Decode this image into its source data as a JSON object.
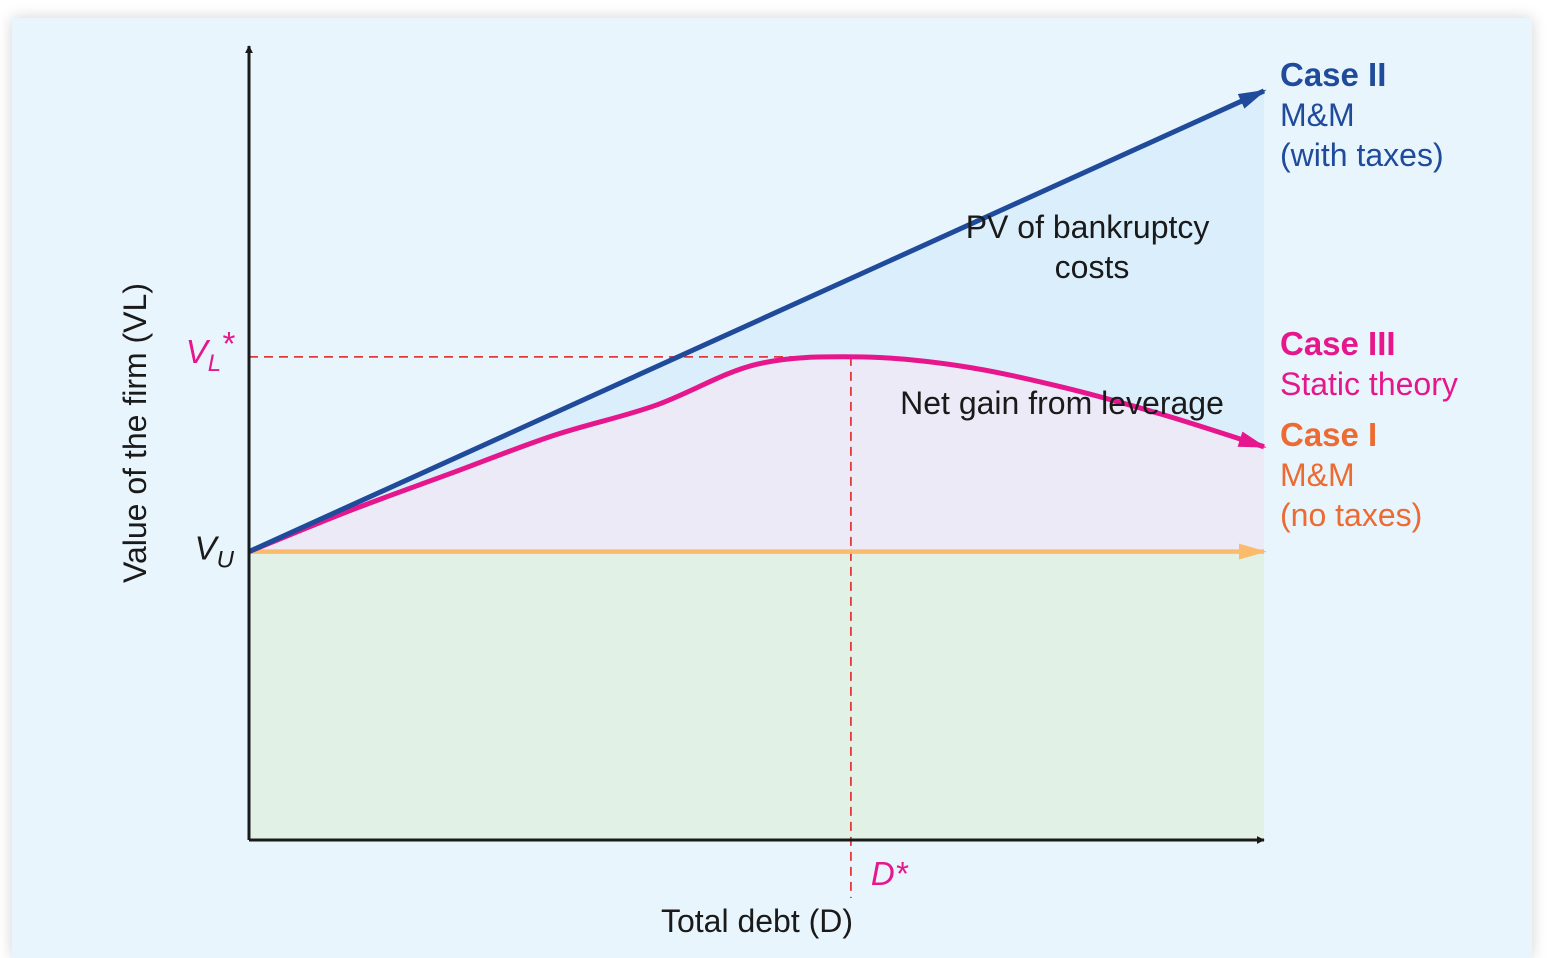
{
  "chart_data": {
    "type": "line",
    "xlabel": "Total debt (D)",
    "ylabel": "Value of the firm (VL)",
    "ticks": {
      "x": {
        "label": "D",
        "suffix": "*"
      },
      "y": [
        {
          "label": "V",
          "sub": "L",
          "suffix": "*"
        },
        {
          "label": "V",
          "sub": "U",
          "suffix": ""
        }
      ]
    },
    "regions": [
      {
        "name": "PV of bankruptcy costs",
        "lines": [
          "PV of bankruptcy",
          "costs"
        ],
        "color": "#dbeefc"
      },
      {
        "name": "Net gain from leverage",
        "lines": [
          "Net gain from leverage"
        ],
        "color": "#eceaf6"
      },
      {
        "name": "base",
        "lines": [],
        "color": "#e2f1e6"
      }
    ],
    "series": [
      {
        "name": "Case II",
        "lines": [
          "Case II",
          "M&M",
          "(with taxes)"
        ],
        "color": "#1f4b9a",
        "label_color": "#1f4b9a",
        "x": [
          0,
          1.0
        ],
        "y": [
          0.385,
          1.0
        ]
      },
      {
        "name": "Case III",
        "lines": [
          "Case III",
          "Static theory"
        ],
        "color": "#e6168c",
        "label_color": "#e6168c",
        "x": [
          0,
          0.1,
          0.2,
          0.3,
          0.4,
          0.5,
          0.6,
          0.7,
          0.8,
          0.9,
          1.0
        ],
        "y": [
          0.385,
          0.44,
          0.49,
          0.54,
          0.58,
          0.635,
          0.645,
          0.633,
          0.605,
          0.568,
          0.525
        ]
      },
      {
        "name": "Case I",
        "lines": [
          "Case I",
          "M&M",
          "(no taxes)"
        ],
        "color": "#fbbb6a",
        "label_color": "#ec6b32",
        "x": [
          0,
          1.0
        ],
        "y": [
          0.385,
          0.385
        ]
      }
    ],
    "xlim": [
      0,
      1
    ],
    "ylim": [
      0,
      1.06
    ],
    "d_star": 0.593,
    "vl_star": 0.645,
    "guide_color": "#e23a3a",
    "tick_color": "#e6168c"
  }
}
